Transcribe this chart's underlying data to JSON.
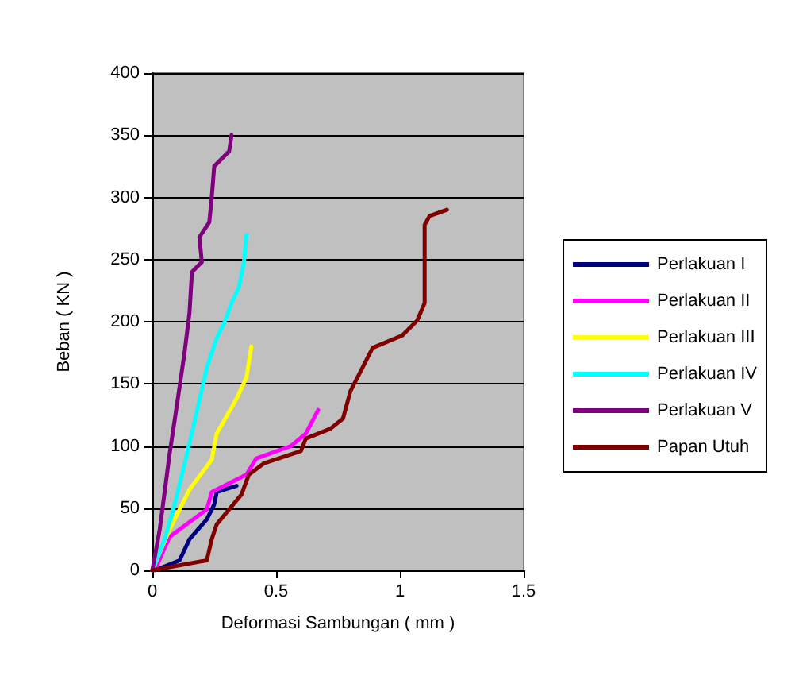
{
  "chart_data": {
    "type": "line",
    "xlabel": "Deformasi Sambungan ( mm )",
    "ylabel": "Beban ( KN )",
    "xlim": [
      0,
      1.5
    ],
    "xticks": [
      0,
      0.5,
      1,
      1.5
    ],
    "ylim": [
      0,
      400
    ],
    "yticks": [
      0,
      50,
      100,
      150,
      200,
      250,
      300,
      350,
      400
    ],
    "grid": "y",
    "legend": "right",
    "marker": "none",
    "line_style": "solid",
    "series": [
      {
        "name": "Perlakuan I",
        "color": "#000080",
        "x": [
          0.01,
          0.11,
          0.15,
          0.22,
          0.25,
          0.26,
          0.34
        ],
        "values": [
          0,
          8,
          25,
          41,
          53,
          63,
          68
        ]
      },
      {
        "name": "Perlakuan II",
        "color": "#ff00ff",
        "x": [
          0.01,
          0.07,
          0.22,
          0.24,
          0.38,
          0.42,
          0.56,
          0.62,
          0.67
        ],
        "values": [
          0,
          27,
          49,
          63,
          77,
          90,
          100,
          110,
          129
        ]
      },
      {
        "name": "Perlakuan III",
        "color": "#ffff00",
        "x": [
          0,
          0.07,
          0.15,
          0.24,
          0.26,
          0.34,
          0.38,
          0.4
        ],
        "values": [
          0,
          33,
          65,
          89,
          110,
          138,
          155,
          180
        ]
      },
      {
        "name": "Perlakuan IV",
        "color": "#00ffff",
        "x": [
          0,
          0.05,
          0.09,
          0.15,
          0.22,
          0.26,
          0.29,
          0.32,
          0.35,
          0.37,
          0.38
        ],
        "values": [
          0,
          25,
          53,
          102,
          163,
          187,
          199,
          215,
          228,
          248,
          270
        ]
      },
      {
        "name": "Perlakuan V",
        "color": "#800080",
        "x": [
          0,
          0.03,
          0.07,
          0.1,
          0.13,
          0.15,
          0.16,
          0.2,
          0.19,
          0.23,
          0.24,
          0.25,
          0.31,
          0.32
        ],
        "values": [
          0,
          33,
          94,
          134,
          175,
          207,
          240,
          248,
          268,
          280,
          300,
          325,
          337,
          350
        ]
      },
      {
        "name": "Papan Utuh",
        "color": "#800000",
        "x": [
          0,
          0.22,
          0.24,
          0.26,
          0.36,
          0.39,
          0.45,
          0.6,
          0.62,
          0.72,
          0.77,
          0.8,
          0.89,
          1.01,
          1.07,
          1.1,
          1.1,
          1.1,
          1.12,
          1.19
        ],
        "values": [
          0,
          8,
          25,
          37,
          61,
          77,
          86,
          96,
          106,
          114,
          122,
          144,
          179,
          189,
          201,
          215,
          240,
          278,
          285,
          290
        ]
      }
    ]
  }
}
